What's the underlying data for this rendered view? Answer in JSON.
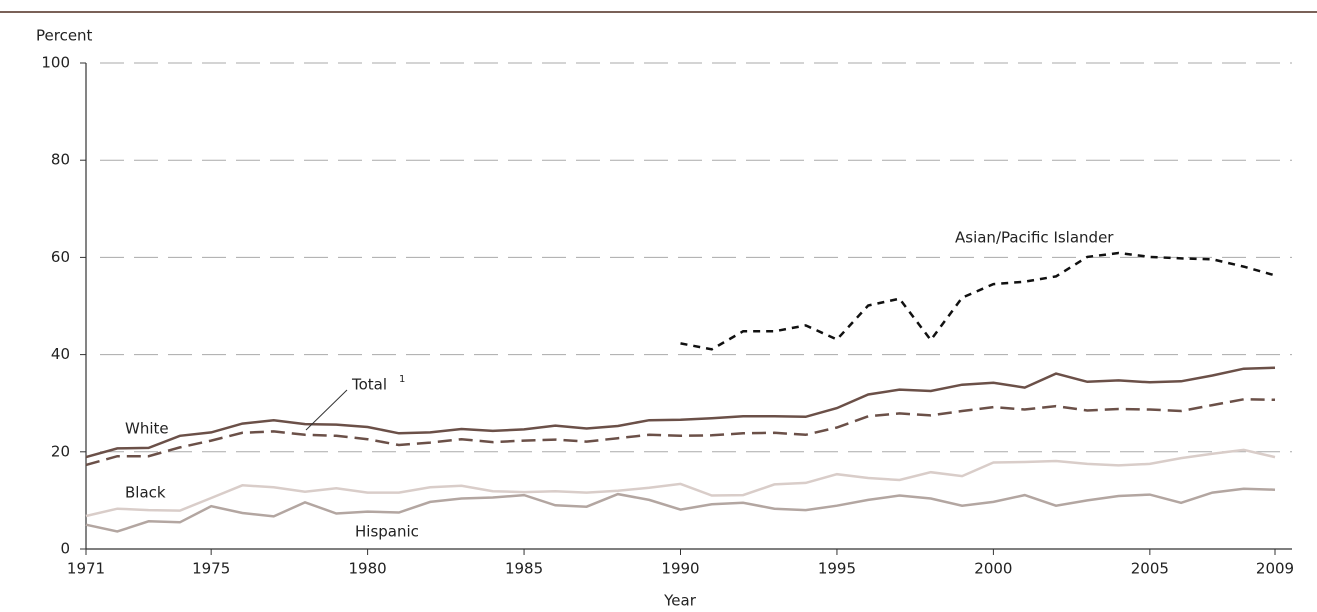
{
  "chart_data": {
    "type": "line",
    "y_label": "Percent",
    "x_label": "Year",
    "x": [
      1971,
      1972,
      1973,
      1974,
      1975,
      1976,
      1977,
      1978,
      1979,
      1980,
      1981,
      1982,
      1983,
      1984,
      1985,
      1986,
      1987,
      1988,
      1989,
      1990,
      1991,
      1992,
      1993,
      1994,
      1995,
      1996,
      1997,
      1998,
      1999,
      2000,
      2001,
      2002,
      2003,
      2004,
      2005,
      2006,
      2007,
      2008,
      2009
    ],
    "xlim": [
      1971,
      2009
    ],
    "xticks": [
      1971,
      1975,
      1980,
      1985,
      1990,
      1995,
      2000,
      2005,
      2009
    ],
    "ylim": [
      0,
      100
    ],
    "yticks": [
      0,
      20,
      40,
      60,
      80,
      100
    ],
    "grid": true,
    "total_footnote_marker": "1",
    "series": [
      {
        "name": "White",
        "color": "#6b5048",
        "dash": "solid",
        "values": [
          18.9,
          20.7,
          20.8,
          23.3,
          24.0,
          25.8,
          26.5,
          25.7,
          25.6,
          25.1,
          23.8,
          24.0,
          24.7,
          24.3,
          24.6,
          25.4,
          24.8,
          25.3,
          26.5,
          26.6,
          26.9,
          27.3,
          27.3,
          27.2,
          29.0,
          31.8,
          32.8,
          32.5,
          33.8,
          34.2,
          33.2,
          36.1,
          34.4,
          34.7,
          34.3,
          34.5,
          35.7,
          37.1,
          37.3
        ]
      },
      {
        "name": "Total",
        "color": "#6b5048",
        "dash": "dashed",
        "values": [
          17.3,
          19.1,
          19.1,
          20.9,
          22.3,
          23.9,
          24.2,
          23.5,
          23.3,
          22.6,
          21.4,
          21.9,
          22.6,
          22.0,
          22.3,
          22.5,
          22.1,
          22.8,
          23.5,
          23.3,
          23.4,
          23.8,
          23.9,
          23.5,
          25.0,
          27.3,
          27.9,
          27.5,
          28.4,
          29.2,
          28.7,
          29.4,
          28.5,
          28.8,
          28.7,
          28.4,
          29.6,
          30.8,
          30.7
        ]
      },
      {
        "name": "Black",
        "color": "#d9cdc9",
        "dash": "solid",
        "values": [
          6.8,
          8.3,
          8.0,
          7.9,
          10.5,
          13.1,
          12.7,
          11.8,
          12.5,
          11.6,
          11.6,
          12.7,
          13.0,
          11.9,
          11.7,
          11.9,
          11.6,
          12.0,
          12.6,
          13.4,
          11.0,
          11.1,
          13.3,
          13.6,
          15.4,
          14.6,
          14.2,
          15.8,
          15.0,
          17.8,
          17.9,
          18.1,
          17.5,
          17.2,
          17.5,
          18.7,
          19.6,
          20.4,
          18.9
        ]
      },
      {
        "name": "Hispanic",
        "color": "#b3a6a1",
        "dash": "solid",
        "values": [
          5.0,
          3.6,
          5.7,
          5.5,
          8.8,
          7.4,
          6.7,
          9.6,
          7.3,
          7.7,
          7.5,
          9.7,
          10.4,
          10.6,
          11.1,
          9.0,
          8.7,
          11.3,
          10.1,
          8.1,
          9.2,
          9.5,
          8.3,
          8.0,
          8.9,
          10.1,
          11.0,
          10.4,
          8.9,
          9.7,
          11.1,
          8.9,
          10.0,
          10.9,
          11.2,
          9.5,
          11.6,
          12.4,
          12.2
        ]
      },
      {
        "name": "Asian/Pacific Islander",
        "color": "#111111",
        "dash": "dotted",
        "values": [
          null,
          null,
          null,
          null,
          null,
          null,
          null,
          null,
          null,
          null,
          null,
          null,
          null,
          null,
          null,
          null,
          null,
          null,
          null,
          42.3,
          41.1,
          44.8,
          44.8,
          46.0,
          43.1,
          50.1,
          51.5,
          43.0,
          51.7,
          54.5,
          55.0,
          56.1,
          60.1,
          60.9,
          60.1,
          59.8,
          59.6,
          58.1,
          56.3
        ]
      }
    ]
  }
}
